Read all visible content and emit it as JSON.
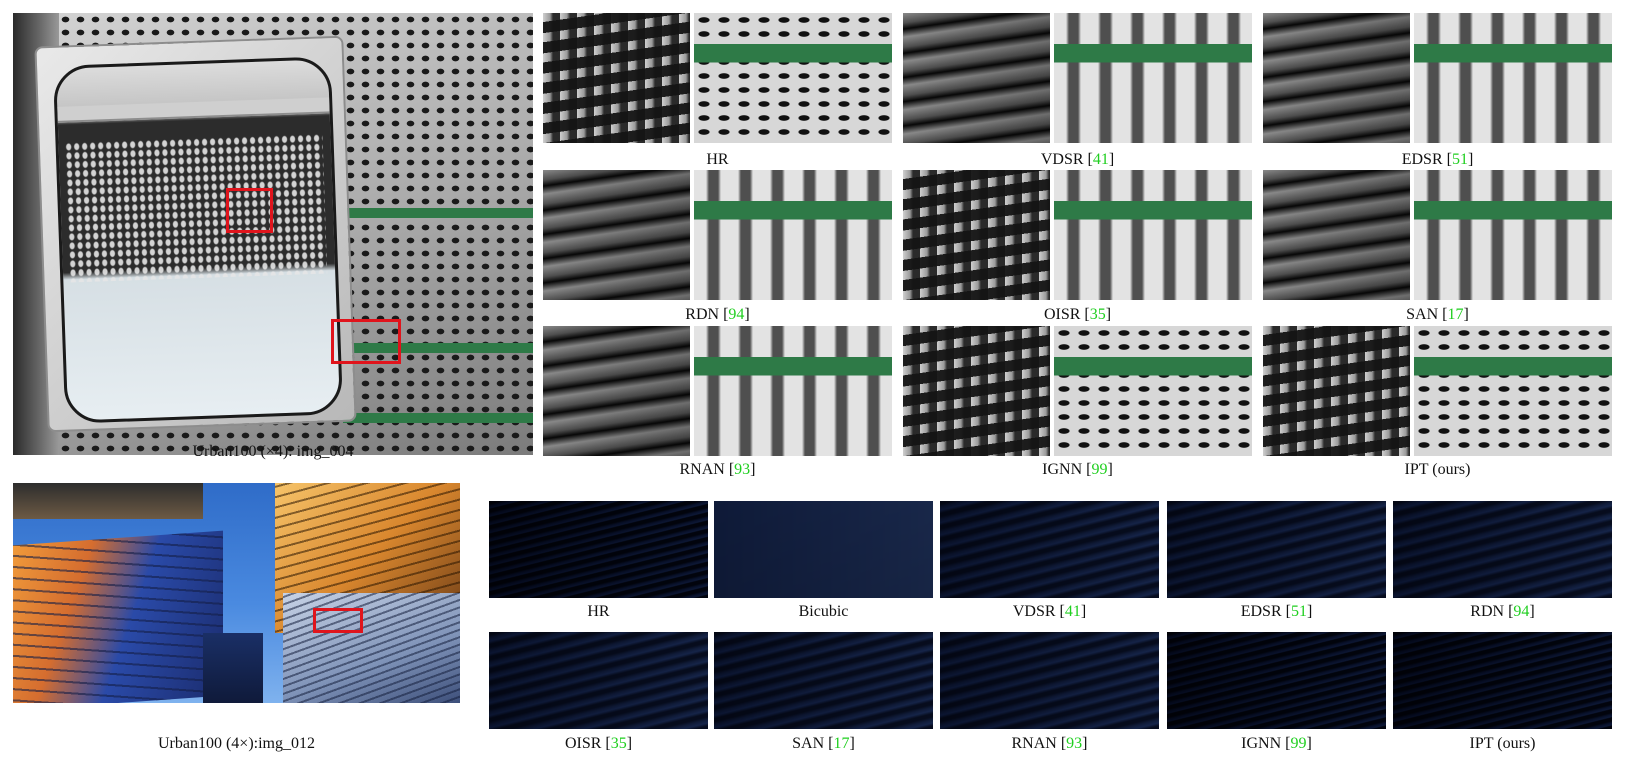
{
  "top_row": {
    "main_caption_prefix": "Urban100 (",
    "main_caption_symbol": "×4",
    "main_caption_suffix": "): img_004",
    "panels": [
      {
        "label": "HR",
        "ref": ""
      },
      {
        "label": "VDSR [",
        "ref": "41",
        "close": "]"
      },
      {
        "label": "EDSR [",
        "ref": "51",
        "close": "]"
      },
      {
        "label": "RDN [",
        "ref": "94",
        "close": "]"
      },
      {
        "label": "OISR [",
        "ref": "35",
        "close": "]"
      },
      {
        "label": "SAN [",
        "ref": "17",
        "close": "]"
      },
      {
        "label": "RNAN  [",
        "ref": "93",
        "close": "]"
      },
      {
        "label": "IGNN [",
        "ref": "99",
        "close": "]"
      },
      {
        "label": "IPT (ours)",
        "ref": ""
      }
    ]
  },
  "bottom_row": {
    "main_caption_prefix": "Urban100 (4",
    "main_caption_symbol": "×",
    "main_caption_suffix": "):img_012",
    "panels": [
      {
        "label": "HR",
        "ref": ""
      },
      {
        "label": "Bicubic",
        "ref": ""
      },
      {
        "label": "VDSR [",
        "ref": "41",
        "close": "]"
      },
      {
        "label": "EDSR [",
        "ref": "51",
        "close": "]"
      },
      {
        "label": "RDN [",
        "ref": "94",
        "close": "]"
      },
      {
        "label": "OISR [",
        "ref": "35",
        "close": "]"
      },
      {
        "label": "SAN [",
        "ref": "17",
        "close": "]"
      },
      {
        "label": "RNAN [",
        "ref": "93",
        "close": "]"
      },
      {
        "label": "IGNN [",
        "ref": "99",
        "close": "]"
      },
      {
        "label": "IPT (ours)",
        "ref": ""
      }
    ]
  },
  "colors": {
    "citation": "#1fcf1f",
    "highlight_box": "#e0141c"
  }
}
